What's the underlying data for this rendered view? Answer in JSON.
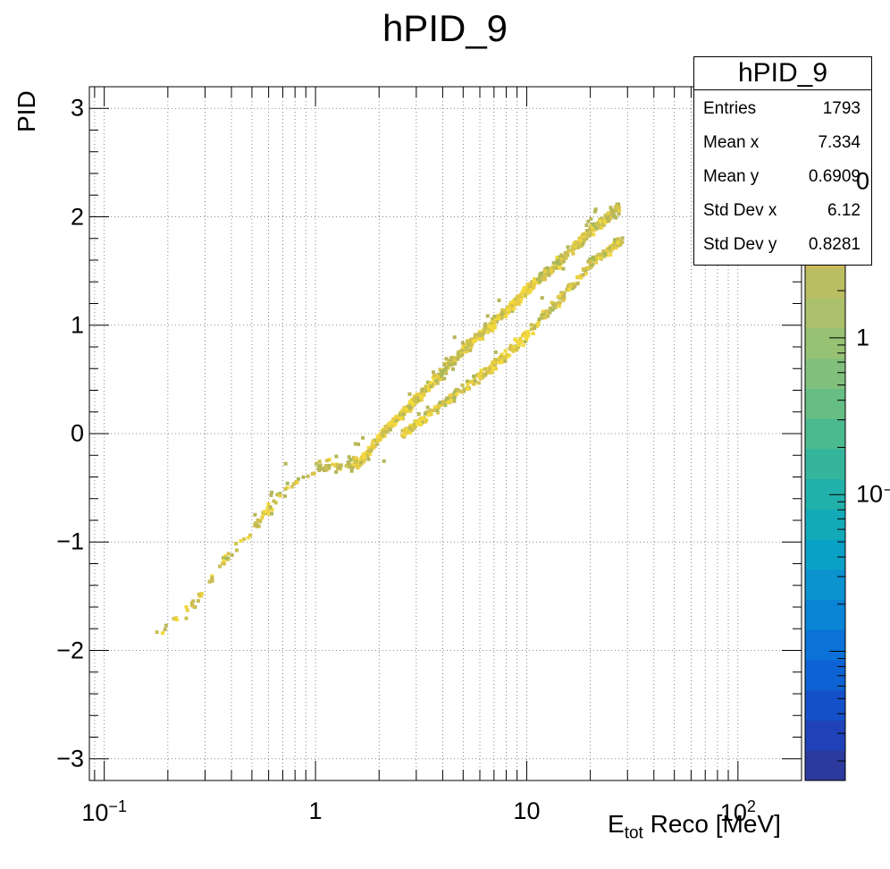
{
  "title": "hPID_9",
  "stats": {
    "name": "hPID_9",
    "rows": [
      {
        "label": "Entries",
        "value": "1793"
      },
      {
        "label": "Mean x",
        "value": "7.334"
      },
      {
        "label": "Mean y",
        "value": "0.6909"
      },
      {
        "label": "Std Dev x",
        "value": "6.12"
      },
      {
        "label": "Std Dev y",
        "value": "0.8281"
      }
    ]
  },
  "axes": {
    "xlabel_main": "E",
    "xlabel_sub": "tot",
    "xlabel_rest": " Reco [MeV]",
    "ylabel": "PID",
    "xticks": [
      {
        "value": 0.1,
        "base": "10",
        "exp": "−1"
      },
      {
        "value": 1,
        "base": "1",
        "exp": ""
      },
      {
        "value": 10,
        "base": "10",
        "exp": ""
      },
      {
        "value": 100,
        "base": "10",
        "exp": "2"
      }
    ],
    "yticks": [
      "3",
      "2",
      "1",
      "0",
      "−1",
      "−2",
      "−3"
    ],
    "zticks": [
      {
        "label": "0",
        "level": 10
      },
      {
        "label": "1",
        "level": 1
      },
      {
        "label": "10⁻",
        "level": 0.1
      }
    ]
  },
  "chart_data": {
    "type": "heatmap",
    "title": "hPID_9",
    "xlabel": "E_tot Reco [MeV]",
    "ylabel": "PID",
    "xscale": "log",
    "xlim": [
      0.085,
      200
    ],
    "ylim": [
      -3.2,
      3.2
    ],
    "zscale": "log",
    "grid": true,
    "colormap": "parula-like",
    "colors": {
      "low": "#2a3aa8",
      "mid": "#2bb5a8",
      "high": "#f9e34a",
      "dominant": "#cbbf57"
    },
    "bands": [
      {
        "name": "upper",
        "points": [
          [
            0.17,
            -1.85
          ],
          [
            0.25,
            -1.6
          ],
          [
            0.35,
            -1.2
          ],
          [
            0.5,
            -0.85
          ],
          [
            0.7,
            -0.5
          ],
          [
            1.0,
            -0.3
          ],
          [
            1.6,
            -0.25
          ],
          [
            2.0,
            0.0
          ],
          [
            3.0,
            0.35
          ],
          [
            5.0,
            0.8
          ],
          [
            7.0,
            1.05
          ],
          [
            10.0,
            1.35
          ],
          [
            15.0,
            1.65
          ],
          [
            20.0,
            1.9
          ],
          [
            27.0,
            2.1
          ]
        ]
      },
      {
        "name": "lower",
        "points": [
          [
            2.5,
            0.0
          ],
          [
            4.0,
            0.3
          ],
          [
            6.0,
            0.55
          ],
          [
            9.0,
            0.85
          ],
          [
            14.0,
            1.25
          ],
          [
            20.0,
            1.6
          ],
          [
            28.0,
            1.8
          ]
        ]
      }
    ],
    "stats": {
      "entries": 1793,
      "mean_x": 7.334,
      "mean_y": 0.6909,
      "std_dev_x": 6.12,
      "std_dev_y": 0.8281
    }
  }
}
